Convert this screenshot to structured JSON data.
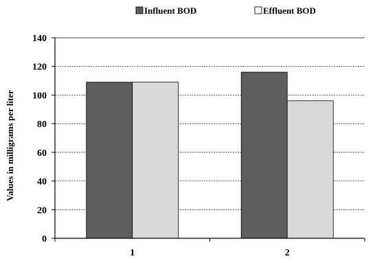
{
  "chart_data": {
    "type": "bar",
    "categories": [
      "1",
      "2"
    ],
    "series": [
      {
        "name": "Influent BOD",
        "values": [
          109,
          116
        ],
        "color": "#5f5f5f"
      },
      {
        "name": "Effluent BOD",
        "values": [
          109,
          96
        ],
        "color": "#d9d9d9"
      }
    ],
    "xlabel": "",
    "ylabel": "Values in milligrams  per liter",
    "ylim": [
      0,
      140
    ],
    "yticks": [
      "0",
      "20",
      "40",
      "60",
      "80",
      "100",
      "120",
      "140"
    ],
    "grid": true,
    "grid_style": "dashed",
    "legend_position": "top-right"
  }
}
